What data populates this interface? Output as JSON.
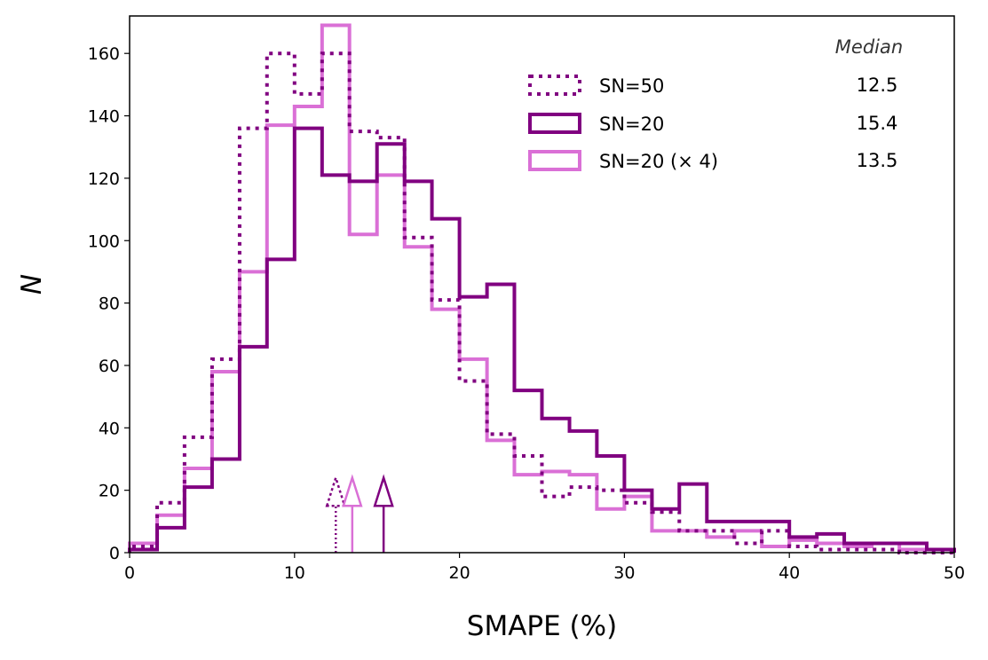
{
  "chart_data": {
    "type": "histogram",
    "title": "",
    "xlabel": "SMAPE (%)",
    "ylabel": "N",
    "xlim": [
      0,
      50
    ],
    "ylim": [
      0,
      172
    ],
    "xticks": [
      0,
      10,
      20,
      30,
      40,
      50
    ],
    "yticks": [
      0,
      20,
      40,
      60,
      80,
      100,
      120,
      140,
      160
    ],
    "bin_edges": [
      0,
      1.67,
      3.33,
      5.0,
      6.67,
      8.33,
      10.0,
      11.67,
      13.33,
      15.0,
      16.67,
      18.33,
      20.0,
      21.67,
      23.33,
      25.0,
      26.67,
      28.33,
      30.0,
      31.67,
      33.33,
      35.0,
      36.67,
      38.33,
      40.0,
      41.67,
      43.33,
      45.0,
      46.67,
      48.33,
      50.0
    ],
    "legend_position": "top-right",
    "median_header": "Median",
    "series": [
      {
        "name": "SN=50",
        "style": "dotted",
        "color": "#800080",
        "median": 12.5,
        "median_label": "12.5",
        "counts": [
          2,
          16,
          37,
          62,
          136,
          160,
          147,
          160,
          135,
          133,
          101,
          81,
          55,
          38,
          31,
          18,
          21,
          20,
          16,
          13,
          7,
          7,
          3,
          7,
          2,
          1,
          1,
          1,
          0,
          0
        ]
      },
      {
        "name": "SN=20",
        "style": "solid",
        "color": "#800080",
        "median": 15.4,
        "median_label": "15.4",
        "counts": [
          1,
          8,
          21,
          30,
          66,
          94,
          136,
          121,
          119,
          131,
          119,
          107,
          82,
          86,
          52,
          43,
          39,
          31,
          20,
          14,
          22,
          10,
          10,
          10,
          5,
          6,
          3,
          3,
          3,
          1
        ]
      },
      {
        "name": "SN=20 (× 4)",
        "style": "solid",
        "color": "#da70d6",
        "median": 13.5,
        "median_label": "13.5",
        "counts": [
          3,
          12,
          27,
          58,
          90,
          137,
          143,
          169,
          102,
          121,
          98,
          78,
          62,
          36,
          25,
          26,
          25,
          14,
          18,
          7,
          7,
          5,
          7,
          2,
          4,
          3,
          2,
          3,
          1,
          1
        ]
      }
    ]
  }
}
